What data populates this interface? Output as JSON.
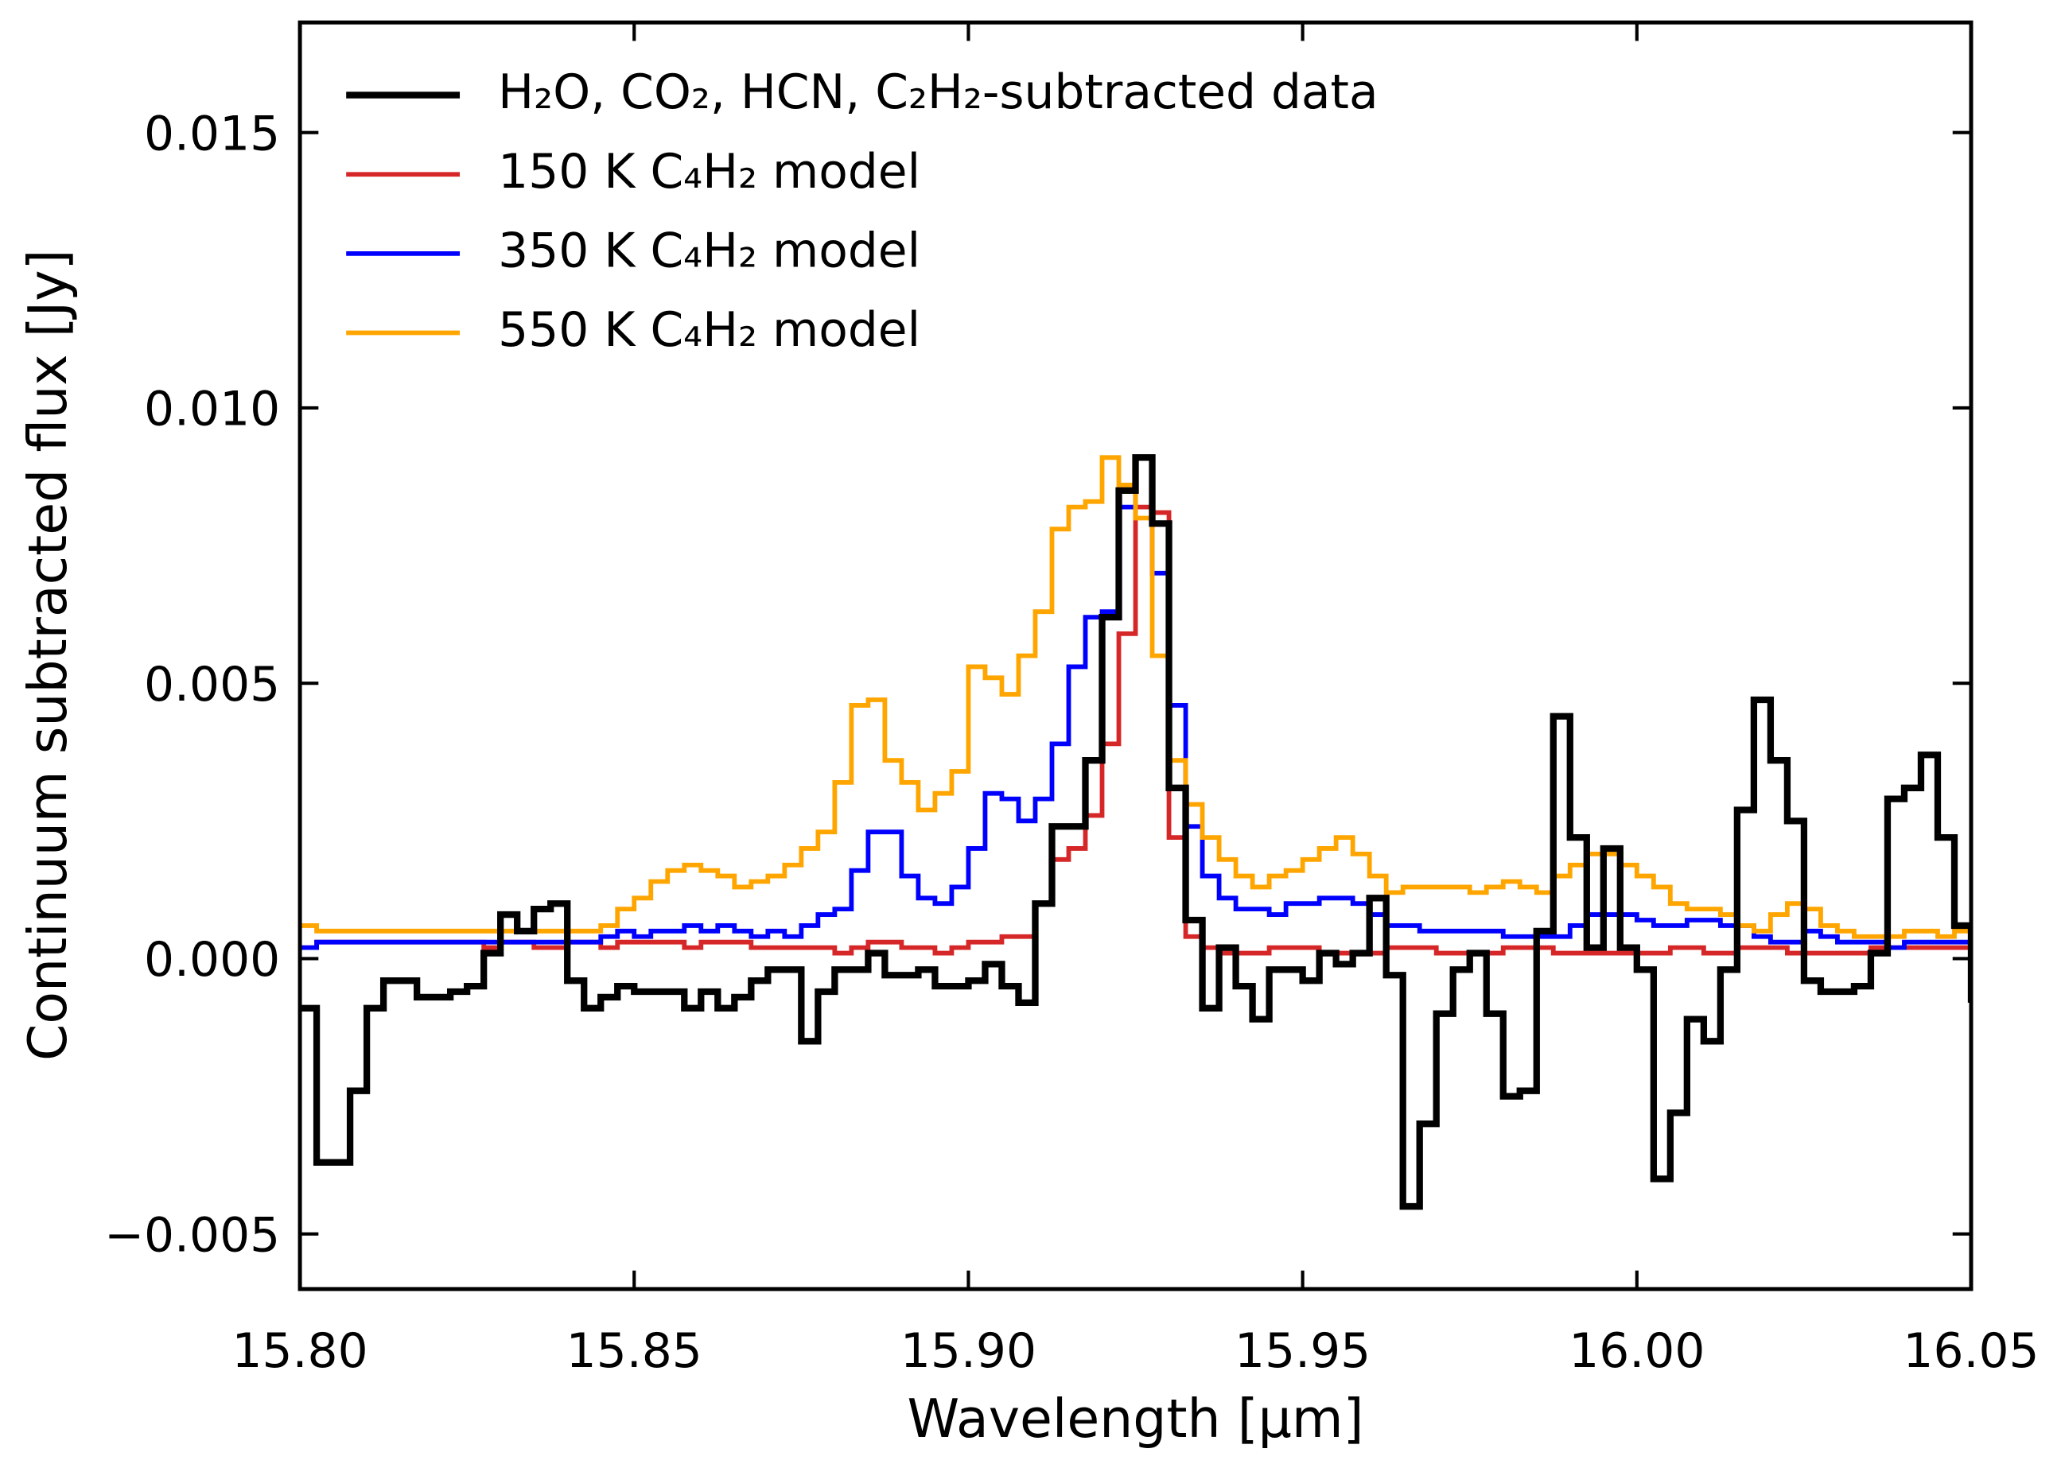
{
  "chart_data": {
    "type": "line",
    "step": true,
    "xlabel": "Wavelength [μm]",
    "ylabel": "Continuum subtracted flux [Jy]",
    "xlim": [
      15.8,
      16.05
    ],
    "ylim": [
      -0.006,
      0.017
    ],
    "xticks": [
      {
        "value": 15.8,
        "label": "15.80"
      },
      15.85,
      {
        "value": 15.9,
        "label": "15.90"
      },
      15.95,
      {
        "value": 16.0,
        "label": "16.00"
      },
      16.05
    ],
    "yticks": [
      {
        "value": -0.005,
        "label": "−0.005"
      },
      {
        "value": 0.0,
        "label": "0.000"
      },
      0.005,
      {
        "value": 0.01,
        "label": "0.010"
      },
      0.015
    ],
    "legend": "upper left",
    "x": [
      15.8,
      15.8025,
      15.805,
      15.8075,
      15.81,
      15.8125,
      15.815,
      15.8175,
      15.82,
      15.8225,
      15.825,
      15.8275,
      15.83,
      15.8325,
      15.835,
      15.8375,
      15.84,
      15.8425,
      15.845,
      15.8475,
      15.85,
      15.8525,
      15.855,
      15.8575,
      15.86,
      15.8625,
      15.865,
      15.8675,
      15.87,
      15.8725,
      15.875,
      15.8775,
      15.88,
      15.8825,
      15.885,
      15.8875,
      15.89,
      15.8925,
      15.895,
      15.8975,
      15.9,
      15.9025,
      15.905,
      15.9075,
      15.91,
      15.9125,
      15.915,
      15.9175,
      15.92,
      15.9225,
      15.925,
      15.9275,
      15.93,
      15.9325,
      15.935,
      15.9375,
      15.94,
      15.9425,
      15.945,
      15.9475,
      15.95,
      15.9525,
      15.955,
      15.9575,
      15.96,
      15.9625,
      15.965,
      15.9675,
      15.97,
      15.9725,
      15.975,
      15.9775,
      15.98,
      15.9825,
      15.985,
      15.9875,
      15.99,
      15.9925,
      15.995,
      15.9975,
      16.0,
      16.0025,
      16.005,
      16.0075,
      16.01,
      16.0125,
      16.015,
      16.0175,
      16.02,
      16.0225,
      16.025,
      16.0275,
      16.03,
      16.0325,
      16.035,
      16.0375,
      16.04,
      16.0425,
      16.045,
      16.0475,
      16.05
    ],
    "series": [
      {
        "name": "H₂O, CO₂, HCN, C₂H₂-subtracted data",
        "color": "#000000",
        "width": 5,
        "values": [
          -0.0009,
          -0.0037,
          -0.0037,
          -0.0024,
          -0.0009,
          -0.0004,
          -0.0004,
          -0.0007,
          -0.0007,
          -0.0006,
          -0.0005,
          0.0001,
          0.0008,
          0.0005,
          0.0009,
          0.001,
          -0.0004,
          -0.0009,
          -0.0007,
          -0.0005,
          -0.0006,
          -0.0006,
          -0.0006,
          -0.0009,
          -0.0006,
          -0.0009,
          -0.0007,
          -0.0004,
          -0.0002,
          -0.0002,
          -0.0015,
          -0.0006,
          -0.0002,
          -0.0002,
          0.0001,
          -0.0003,
          -0.0003,
          -0.0002,
          -0.0005,
          -0.0005,
          -0.0004,
          -0.0001,
          -0.0005,
          -0.0008,
          0.001,
          0.0024,
          0.0024,
          0.0036,
          0.0062,
          0.0085,
          0.0091,
          0.0079,
          0.0031,
          0.0007,
          -0.0009,
          0.0002,
          -0.0005,
          -0.0011,
          -0.0002,
          -0.0002,
          -0.0004,
          0.0001,
          -0.0001,
          0.0001,
          0.0011,
          -0.0003,
          -0.0045,
          -0.003,
          -0.001,
          -0.0002,
          0.0001,
          -0.001,
          -0.0025,
          -0.0024,
          0.0005,
          0.0044,
          0.0022,
          0.0002,
          0.002,
          0.0002,
          -0.0002,
          -0.004,
          -0.0028,
          -0.0011,
          -0.0015,
          -0.0002,
          0.0027,
          0.0047,
          0.0036,
          0.0025,
          -0.0004,
          -0.0006,
          -0.0006,
          -0.0005,
          0.0001,
          0.0029,
          0.0031,
          0.0037,
          0.0022,
          0.0006,
          -0.0008
        ]
      },
      {
        "name": "150 K C₄H₂ model",
        "color": "#d62728",
        "width": 3.5,
        "values": [
          0.0002,
          0.0003,
          0.0003,
          0.0003,
          0.0003,
          0.0003,
          0.0003,
          0.0003,
          0.0003,
          0.0003,
          0.0003,
          0.0002,
          0.0003,
          0.0003,
          0.0002,
          0.0002,
          0.0003,
          0.0003,
          0.0002,
          0.0003,
          0.0003,
          0.0003,
          0.0003,
          0.0002,
          0.0003,
          0.0003,
          0.0003,
          0.0002,
          0.0002,
          0.0002,
          0.0002,
          0.0002,
          0.0001,
          0.0002,
          0.0003,
          0.0003,
          0.0002,
          0.0002,
          0.0001,
          0.0002,
          0.0003,
          0.0003,
          0.0004,
          0.0004,
          0.001,
          0.0018,
          0.002,
          0.0026,
          0.0039,
          0.0059,
          0.0082,
          0.0081,
          0.0022,
          0.0004,
          0.0002,
          0.0001,
          0.0001,
          0.0001,
          0.0002,
          0.0002,
          0.0002,
          0.0001,
          0.0001,
          0.0001,
          0.0001,
          0.0002,
          0.0002,
          0.0002,
          0.0001,
          0.0001,
          0.0001,
          0.0001,
          0.0002,
          0.0002,
          0.0002,
          0.0001,
          0.0001,
          0.0001,
          0.0001,
          0.0001,
          0.0001,
          0.0001,
          0.0002,
          0.0002,
          0.0001,
          0.0001,
          0.0002,
          0.0002,
          0.0002,
          0.0001,
          0.0001,
          0.0001,
          0.0001,
          0.0001,
          0.0002,
          0.0002,
          0.0002,
          0.0002,
          0.0002,
          0.0002,
          0.0002
        ]
      },
      {
        "name": "350 K C₄H₂ model",
        "color": "#0000ff",
        "width": 3.5,
        "values": [
          0.0002,
          0.0003,
          0.0003,
          0.0003,
          0.0003,
          0.0003,
          0.0003,
          0.0003,
          0.0003,
          0.0003,
          0.0003,
          0.0003,
          0.0003,
          0.0003,
          0.0003,
          0.0003,
          0.0003,
          0.0003,
          0.0004,
          0.0005,
          0.0004,
          0.0005,
          0.0005,
          0.0006,
          0.0005,
          0.0006,
          0.0005,
          0.0004,
          0.0005,
          0.0004,
          0.0006,
          0.0008,
          0.0009,
          0.0016,
          0.0023,
          0.0023,
          0.0015,
          0.0011,
          0.001,
          0.0013,
          0.002,
          0.003,
          0.0029,
          0.0025,
          0.0029,
          0.0039,
          0.0053,
          0.0062,
          0.0063,
          0.0082,
          0.0091,
          0.007,
          0.0046,
          0.0024,
          0.0015,
          0.0011,
          0.0009,
          0.0009,
          0.0008,
          0.001,
          0.001,
          0.0011,
          0.0011,
          0.001,
          0.0008,
          0.0006,
          0.0006,
          0.0005,
          0.0005,
          0.0005,
          0.0005,
          0.0005,
          0.0004,
          0.0004,
          0.0004,
          0.0004,
          0.0006,
          0.0008,
          0.0008,
          0.0008,
          0.0007,
          0.0006,
          0.0006,
          0.0007,
          0.0007,
          0.0006,
          0.0006,
          0.0004,
          0.0003,
          0.0003,
          0.0005,
          0.0004,
          0.0003,
          0.0003,
          0.0003,
          0.0002,
          0.0003,
          0.0003,
          0.0003,
          0.0003,
          0.0003
        ]
      },
      {
        "name": "550 K C₄H₂ model",
        "color": "#ffa500",
        "width": 3.5,
        "values": [
          0.0006,
          0.0005,
          0.0005,
          0.0005,
          0.0005,
          0.0005,
          0.0005,
          0.0005,
          0.0005,
          0.0005,
          0.0005,
          0.0005,
          0.0005,
          0.0005,
          0.0005,
          0.0005,
          0.0005,
          0.0005,
          0.0006,
          0.0009,
          0.0011,
          0.0014,
          0.0016,
          0.0017,
          0.0016,
          0.0015,
          0.0013,
          0.0014,
          0.0015,
          0.0017,
          0.002,
          0.0023,
          0.0032,
          0.0046,
          0.0047,
          0.0036,
          0.0032,
          0.0027,
          0.003,
          0.0034,
          0.0053,
          0.0051,
          0.0048,
          0.0055,
          0.0063,
          0.0078,
          0.0082,
          0.0083,
          0.0091,
          0.0086,
          0.008,
          0.0055,
          0.0036,
          0.0028,
          0.0022,
          0.0018,
          0.0015,
          0.0013,
          0.0015,
          0.0016,
          0.0018,
          0.002,
          0.0022,
          0.0019,
          0.0015,
          0.0012,
          0.0013,
          0.0013,
          0.0013,
          0.0013,
          0.0012,
          0.0013,
          0.0014,
          0.0013,
          0.0012,
          0.0015,
          0.0017,
          0.0019,
          0.0019,
          0.0017,
          0.0015,
          0.0013,
          0.001,
          0.0009,
          0.0009,
          0.0008,
          0.0006,
          0.0005,
          0.0008,
          0.001,
          0.0009,
          0.0006,
          0.0005,
          0.0004,
          0.0004,
          0.0004,
          0.0005,
          0.0005,
          0.0004,
          0.0005,
          0.0005
        ]
      }
    ]
  }
}
